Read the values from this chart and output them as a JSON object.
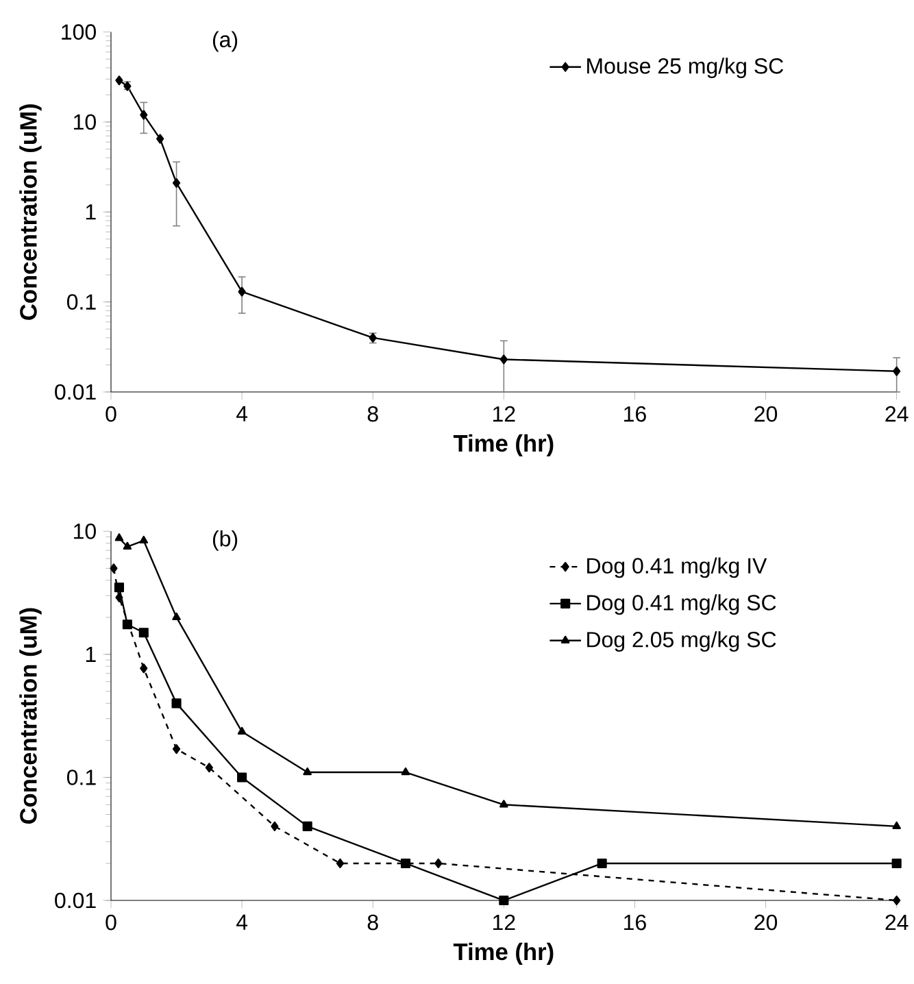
{
  "chart_data": [
    {
      "type": "line",
      "xlabel": "Time (hr)",
      "ylabel": "Concentration (uM)",
      "annotations": [
        "(a)"
      ],
      "log": "y",
      "legend": "top right",
      "xlim": [
        0,
        24
      ],
      "xticks": [
        0,
        4,
        8,
        12,
        16,
        20,
        24
      ],
      "ylim": [
        0.01,
        100
      ],
      "yticks": [
        0.01,
        0.1,
        1,
        10,
        100
      ],
      "series": [
        {
          "name": "Mouse 25 mg/kg SC",
          "color": "#000000",
          "marker": "diamond",
          "line_style": "solid",
          "x": [
            0.25,
            0.5,
            1,
            1.5,
            2,
            4,
            8,
            12,
            24
          ],
          "values": [
            29,
            25,
            12,
            6.5,
            2.1,
            0.13,
            0.04,
            0.023,
            0.017
          ],
          "errors": [
            null,
            [
              23,
              28
            ],
            [
              7.5,
              16.5
            ],
            null,
            [
              0.7,
              3.6
            ],
            [
              0.075,
              0.19
            ],
            [
              0.035,
              0.045
            ],
            [
              0.01,
              0.037
            ],
            [
              0.01,
              0.024
            ]
          ]
        }
      ]
    },
    {
      "type": "line",
      "xlabel": "Time (hr)",
      "ylabel": "Concentration (uM)",
      "annotations": [
        "(b)"
      ],
      "log": "y",
      "legend": "top right",
      "xlim": [
        0,
        24
      ],
      "xticks": [
        0,
        4,
        8,
        12,
        16,
        20,
        24
      ],
      "ylim": [
        0.01,
        10
      ],
      "yticks": [
        0.01,
        0.1,
        1,
        10
      ],
      "series": [
        {
          "name": "Dog 0.41 mg/kg IV",
          "color": "#000000",
          "marker": "diamond",
          "line_style": "dashed",
          "x": [
            0.083,
            0.25,
            0.5,
            1,
            2,
            3,
            5,
            7,
            9,
            10,
            24
          ],
          "values": [
            5,
            2.9,
            null,
            0.77,
            0.17,
            0.12,
            0.04,
            0.02,
            0.02,
            0.02,
            0.01
          ]
        },
        {
          "name": "Dog 0.41 mg/kg SC",
          "color": "#000000",
          "marker": "square",
          "line_style": "solid",
          "x": [
            0.25,
            0.5,
            1,
            2,
            4,
            6,
            9,
            12,
            15,
            24
          ],
          "values": [
            3.5,
            1.75,
            1.5,
            0.4,
            0.1,
            0.04,
            0.02,
            0.01,
            0.02,
            0.02
          ]
        },
        {
          "name": "Dog 2.05 mg/kg SC",
          "color": "#000000",
          "marker": "triangle",
          "line_style": "solid",
          "x": [
            0.25,
            0.5,
            1,
            2,
            4,
            6,
            9,
            12,
            24
          ],
          "values": [
            8.8,
            7.5,
            8.4,
            2,
            0.235,
            0.11,
            0.11,
            0.06,
            0.04
          ]
        }
      ]
    }
  ]
}
